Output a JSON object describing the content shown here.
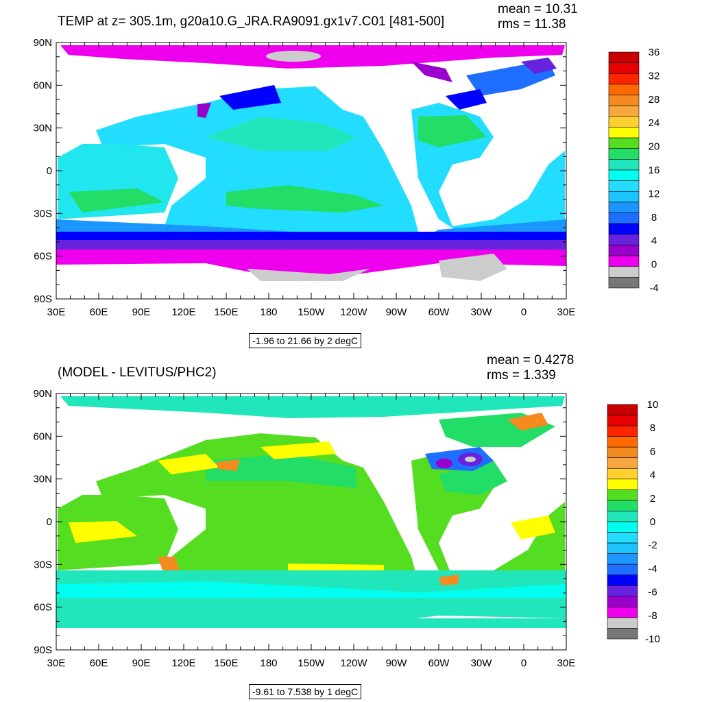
{
  "panels": [
    {
      "title": "TEMP at z= 305.1m, g20a10.G_JRA.RA9091.gx1v7.C01 [481-500]",
      "mean_label": "mean = ",
      "mean_value": "10.31",
      "rms_label": "rms = ",
      "rms_value": "11.38",
      "range_text": "-1.96 to 21.66 by 2 degC",
      "colorbar_labels": [
        "36",
        "32",
        "28",
        "24",
        "20",
        "16",
        "12",
        "8",
        "4",
        "0",
        "-4"
      ],
      "colorbar_colors": [
        "#c80000",
        "#e60000",
        "#ff2400",
        "#ff6a00",
        "#f58a1e",
        "#f7a840",
        "#ffd030",
        "#ffff00",
        "#55dd22",
        "#22dd66",
        "#22e6bb",
        "#00ffee",
        "#22ddff",
        "#1cc3ff",
        "#1c96ff",
        "#1e6fff",
        "#0000ff",
        "#6622dd",
        "#9900cc",
        "#ee00ee",
        "#cccccc",
        "#777777"
      ]
    },
    {
      "title": "(MODEL - LEVITUS/PHC2)",
      "mean_label": "mean = ",
      "mean_value": "0.4278",
      "rms_label": "rms = ",
      "rms_value": "1.339",
      "range_text": "-9.61 to 7.538 by 1 degC",
      "colorbar_labels": [
        "10",
        "8",
        "6",
        "4",
        "2",
        "0",
        "-2",
        "-4",
        "-6",
        "-8",
        "-10"
      ],
      "colorbar_colors": [
        "#c80000",
        "#e60000",
        "#ff2400",
        "#ff6a00",
        "#f58a1e",
        "#f7a840",
        "#ffd030",
        "#ffff00",
        "#55dd22",
        "#22dd66",
        "#22e6bb",
        "#00ffee",
        "#22ddff",
        "#1cc3ff",
        "#1c96ff",
        "#1e6fff",
        "#0000ff",
        "#6622dd",
        "#9900cc",
        "#ee00ee",
        "#cccccc",
        "#777777"
      ]
    }
  ],
  "axes": {
    "y_labels": [
      "90N",
      "60N",
      "30N",
      "0",
      "30S",
      "60S",
      "90S"
    ],
    "x_labels": [
      "30E",
      "60E",
      "90E",
      "120E",
      "150E",
      "180",
      "150W",
      "120W",
      "90W",
      "60W",
      "30W",
      "0",
      "30E"
    ]
  },
  "palette": {
    "ocean_top_main": "#22e6ee",
    "ocean_bottom_main": "#22dd66",
    "land": "#ffffff"
  }
}
